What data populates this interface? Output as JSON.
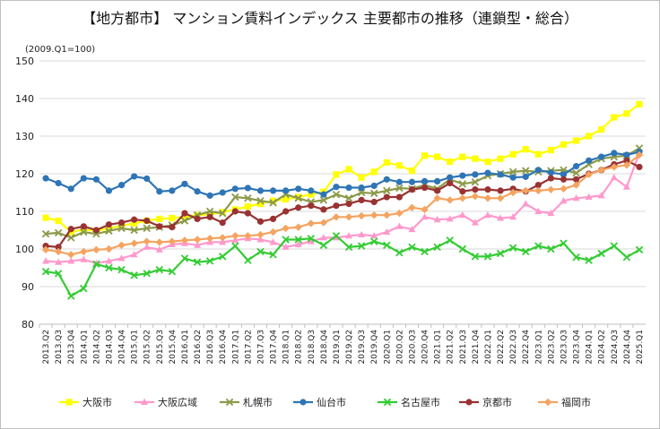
{
  "chart_data": {
    "type": "line",
    "title": "【地方都市】 マンション賃料インデックス 主要都市の推移（連鎖型・総合）",
    "note": "(2009.Q1=100)",
    "ylim": [
      80,
      150
    ],
    "yticks": [
      80,
      90,
      100,
      110,
      120,
      130,
      140,
      150
    ],
    "grid": true,
    "legend_position": "bottom",
    "categories": [
      "2013.Q2",
      "2013.Q3",
      "2013.Q4",
      "2014.Q1",
      "2014.Q2",
      "2014.Q3",
      "2014.Q4",
      "2015.Q1",
      "2015.Q2",
      "2015.Q3",
      "2015.Q4",
      "2016.Q1",
      "2016.Q2",
      "2016.Q3",
      "2016.Q4",
      "2017.Q1",
      "2017.Q2",
      "2017.Q3",
      "2017.Q4",
      "2018.Q1",
      "2018.Q2",
      "2018.Q3",
      "2018.Q4",
      "2019.Q1",
      "2019.Q2",
      "2019.Q3",
      "2019.Q4",
      "2020.Q1",
      "2020.Q2",
      "2020.Q3",
      "2020.Q4",
      "2021.Q1",
      "2021.Q2",
      "2021.Q3",
      "2021.Q4",
      "2022.Q1",
      "2022.Q2",
      "2022.Q3",
      "2022.Q4",
      "2023.Q1",
      "2023.Q2",
      "2023.Q3",
      "2023.Q4",
      "2024.Q1",
      "2024.Q2",
      "2024.Q3",
      "2024.Q4",
      "2025.Q1"
    ],
    "series": [
      {
        "name": "大阪市",
        "color": "#ffff00",
        "marker": "square",
        "values": [
          108.3,
          107.5,
          104.5,
          105.2,
          104.8,
          105.5,
          106.2,
          106.8,
          107.5,
          108.0,
          108.2,
          108.5,
          109.0,
          109.2,
          109.8,
          110.5,
          111.3,
          112.0,
          112.8,
          113.2,
          113.8,
          114.5,
          115.2,
          119.8,
          121.2,
          119.0,
          120.5,
          123.0,
          122.2,
          120.8,
          124.8,
          124.5,
          123.2,
          124.5,
          124.0,
          123.2,
          124.0,
          125.2,
          126.5,
          125.2,
          126.3,
          127.8,
          128.8,
          130.0,
          131.8,
          135.0,
          136.0,
          138.5
        ]
      },
      {
        "name": "大阪広域",
        "color": "#ff99cc",
        "marker": "triangle",
        "values": [
          96.8,
          96.5,
          96.8,
          97.2,
          96.2,
          96.8,
          97.5,
          98.5,
          100.5,
          99.8,
          101.2,
          101.5,
          101.0,
          101.8,
          101.8,
          102.3,
          102.8,
          102.5,
          101.8,
          100.5,
          101.2,
          102.0,
          103.0,
          103.0,
          103.5,
          103.8,
          103.5,
          104.5,
          106.0,
          105.2,
          108.5,
          107.8,
          108.0,
          109.0,
          107.0,
          109.0,
          108.2,
          108.5,
          112.0,
          110.0,
          109.5,
          112.8,
          113.5,
          113.8,
          114.2,
          119.0,
          116.5,
          125.5
        ]
      },
      {
        "name": "札幌市",
        "color": "#8c9a4a",
        "marker": "x",
        "values": [
          104.0,
          104.3,
          103.0,
          104.5,
          104.0,
          104.8,
          105.5,
          105.0,
          105.5,
          105.8,
          106.3,
          107.5,
          109.0,
          110.0,
          109.5,
          113.8,
          113.5,
          112.8,
          112.3,
          114.5,
          113.5,
          112.5,
          113.0,
          114.5,
          113.5,
          115.0,
          114.8,
          115.5,
          116.2,
          116.0,
          117.0,
          116.0,
          118.5,
          117.3,
          117.8,
          119.5,
          120.0,
          120.5,
          120.8,
          120.5,
          120.8,
          121.0,
          120.2,
          122.5,
          124.0,
          124.5,
          124.8,
          126.8
        ]
      },
      {
        "name": "仙台市",
        "color": "#2e75b6",
        "marker": "circle",
        "values": [
          118.8,
          117.5,
          116.0,
          118.8,
          118.5,
          115.5,
          117.0,
          119.3,
          118.7,
          115.3,
          115.5,
          117.3,
          115.3,
          114.2,
          115.0,
          116.0,
          116.2,
          115.5,
          115.5,
          115.5,
          116.0,
          115.5,
          114.5,
          116.5,
          116.3,
          116.3,
          116.8,
          118.5,
          117.8,
          117.8,
          118.0,
          118.0,
          119.0,
          119.5,
          119.8,
          120.2,
          119.8,
          119.0,
          119.2,
          121.0,
          120.3,
          119.8,
          122.0,
          123.5,
          124.5,
          125.5,
          125.0,
          125.8
        ]
      },
      {
        "name": "名古屋市",
        "color": "#33cc33",
        "marker": "x",
        "values": [
          94.0,
          93.5,
          87.5,
          89.5,
          96.0,
          95.0,
          94.5,
          93.0,
          93.5,
          94.5,
          94.0,
          97.5,
          96.5,
          96.8,
          98.0,
          100.8,
          97.0,
          99.3,
          98.5,
          102.5,
          102.5,
          102.8,
          101.0,
          103.5,
          100.5,
          100.8,
          102.0,
          101.0,
          99.0,
          100.5,
          99.3,
          100.5,
          102.3,
          100.0,
          98.0,
          98.0,
          98.8,
          100.3,
          99.3,
          100.8,
          100.0,
          101.5,
          97.8,
          97.0,
          98.8,
          100.8,
          97.8,
          99.8
        ]
      },
      {
        "name": "京都市",
        "color": "#993333",
        "marker": "circle",
        "values": [
          100.8,
          100.5,
          105.3,
          106.0,
          105.0,
          106.5,
          107.0,
          107.8,
          107.5,
          106.0,
          105.8,
          109.5,
          108.0,
          108.5,
          107.0,
          110.0,
          109.5,
          107.3,
          108.0,
          110.0,
          111.0,
          111.5,
          110.5,
          111.5,
          112.0,
          113.0,
          112.5,
          113.8,
          113.8,
          115.8,
          116.3,
          115.5,
          117.5,
          115.3,
          115.8,
          115.8,
          115.5,
          116.0,
          115.3,
          117.0,
          118.8,
          118.5,
          118.5,
          120.0,
          121.0,
          122.5,
          123.5,
          121.8
        ]
      },
      {
        "name": "福岡市",
        "color": "#f4a460",
        "marker": "diamond",
        "values": [
          99.8,
          99.3,
          98.5,
          99.3,
          99.8,
          100.0,
          101.0,
          101.5,
          102.0,
          101.8,
          102.0,
          102.3,
          102.5,
          102.8,
          103.0,
          103.5,
          103.5,
          103.8,
          104.5,
          105.5,
          105.8,
          106.8,
          107.0,
          108.5,
          108.5,
          108.8,
          109.0,
          109.0,
          109.5,
          111.0,
          110.5,
          113.5,
          113.0,
          113.5,
          114.0,
          113.5,
          113.5,
          115.0,
          115.5,
          115.5,
          115.8,
          116.0,
          117.0,
          119.8,
          121.0,
          121.8,
          122.3,
          125.0
        ]
      }
    ]
  }
}
